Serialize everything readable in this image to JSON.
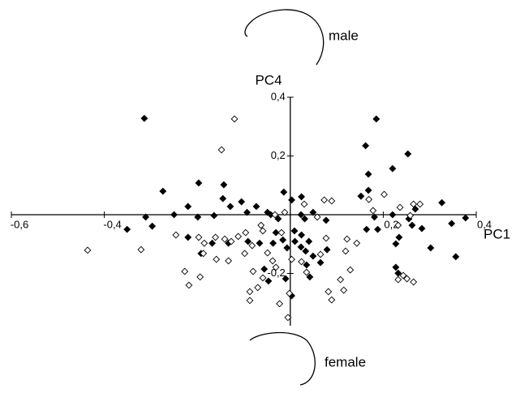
{
  "chart_data": {
    "type": "scatter",
    "x_label": "PC1",
    "y_label": "PC4",
    "annotations": [
      "male",
      "female"
    ],
    "xlim": [
      -0.6,
      0.4
    ],
    "ylim": [
      -0.4,
      0.4
    ],
    "xticks": [
      {
        "value": -0.6,
        "label": "-0,6"
      },
      {
        "value": -0.4,
        "label": "-0,4"
      },
      {
        "value": 0.2,
        "label": "0,2"
      },
      {
        "value": 0.4,
        "label": "0,4"
      }
    ],
    "yticks": [
      {
        "value": 0.4,
        "label": "0,4"
      },
      {
        "value": 0.2,
        "label": "0,2"
      },
      {
        "value": -0.2,
        "label": "-0,2"
      }
    ],
    "series": [
      {
        "color": "#000000",
        "filled": true,
        "x": [
          -0.314,
          0.185,
          -0.274,
          -0.197,
          -0.143,
          -0.145,
          -0.22,
          -0.25,
          -0.199,
          -0.164,
          -0.129,
          -0.105,
          -0.093,
          -0.073,
          -0.049,
          -0.042,
          -0.026,
          -0.014,
          0.003,
          0.024,
          0.023,
          0.031,
          0.049,
          0.077,
          -0.351,
          -0.297,
          -0.311,
          -0.22,
          -0.192,
          -0.168,
          -0.133,
          -0.091,
          -0.066,
          -0.037,
          -0.007,
          0.01,
          0.023,
          0.033,
          0.049,
          0.009,
          0.024,
          0.04,
          -0.056,
          -0.047,
          -0.01,
          0.003,
          0.042,
          0.065,
          0.079,
          0.152,
          0.168,
          0.181,
          0.164,
          0.188,
          0.22,
          0.234,
          0.22,
          0.253,
          0.168,
          0.162,
          0.227,
          0.255,
          0.262,
          0.269,
          0.283,
          0.302,
          0.326,
          0.347,
          0.377,
          0.356,
          0.227,
          0.232,
          0.035,
          -0.016,
          -0.031
        ],
        "y": [
          0.328,
          0.326,
          0.08,
          0.108,
          0.102,
          0.055,
          0.028,
          0,
          -0.008,
          -0.003,
          0.028,
          0.044,
          0.008,
          0.028,
          0.008,
          0,
          -0.014,
          0.077,
          0.05,
          0.061,
          0,
          -0.014,
          0.008,
          -0.019,
          -0.05,
          -0.039,
          -0.008,
          -0.077,
          -0.132,
          -0.097,
          -0.097,
          -0.091,
          -0.097,
          -0.097,
          -0.113,
          -0.091,
          -0.11,
          -0.124,
          -0.141,
          -0.055,
          -0.069,
          -0.091,
          -0.185,
          -0.226,
          -0.218,
          -0.276,
          -0.212,
          -0.163,
          -0.119,
          0.063,
          0.083,
          -0.008,
          -0.05,
          -0.05,
          0,
          -0.077,
          0.157,
          0.207,
          0.138,
          0.235,
          -0.099,
          -0.014,
          -0.036,
          0.019,
          -0.047,
          -0.113,
          0.041,
          -0.03,
          -0.011,
          -0.143,
          -0.179,
          -0.199,
          -0.171,
          -0.086,
          -0.061
        ]
      },
      {
        "color": "#000000",
        "filled": false,
        "x": [
          -0.12,
          -0.148,
          -0.436,
          -0.321,
          -0.246,
          -0.197,
          -0.187,
          -0.185,
          -0.161,
          -0.141,
          -0.112,
          -0.096,
          -0.082,
          -0.059,
          -0.033,
          -0.019,
          -0.012,
          -0.063,
          -0.227,
          -0.218,
          -0.194,
          -0.159,
          -0.133,
          -0.098,
          -0.08,
          -0.07,
          -0.059,
          -0.087,
          -0.087,
          -0.023,
          -0.002,
          -0.005,
          -0.038,
          -0.031,
          0.035,
          0.024,
          0.065,
          0.077,
          0.073,
          0.089,
          0.119,
          0.129,
          0.108,
          0.115,
          0.082,
          0.089,
          0.122,
          0.143,
          0.169,
          0.178,
          0.202,
          0.236,
          0.265,
          0.279,
          0.258,
          0.232,
          0.232,
          0.243,
          0.251,
          0.265,
          0.058,
          0.03,
          -0.127,
          -0.049,
          0.003
        ],
        "y": [
          0.326,
          0.221,
          -0.121,
          -0.119,
          -0.069,
          -0.077,
          -0.132,
          -0.097,
          -0.077,
          -0.083,
          -0.074,
          -0.061,
          -0.105,
          -0.055,
          0,
          -0.061,
          0.008,
          -0.036,
          -0.193,
          -0.24,
          -0.212,
          -0.152,
          -0.157,
          -0.132,
          -0.193,
          -0.248,
          -0.215,
          -0.262,
          -0.292,
          -0.303,
          -0.268,
          -0.35,
          -0.157,
          -0.179,
          -0.196,
          -0.16,
          -0.135,
          -0.08,
          0.05,
          0.047,
          -0.124,
          -0.188,
          -0.221,
          -0.257,
          -0.262,
          -0.29,
          -0.083,
          -0.097,
          0.052,
          0.014,
          0.069,
          0.025,
          0.036,
          0.036,
          -0.003,
          -0.036,
          -0.221,
          -0.207,
          -0.218,
          -0.229,
          -0.008,
          0.036,
          -0.091,
          -0.13,
          -0.152
        ]
      }
    ]
  }
}
